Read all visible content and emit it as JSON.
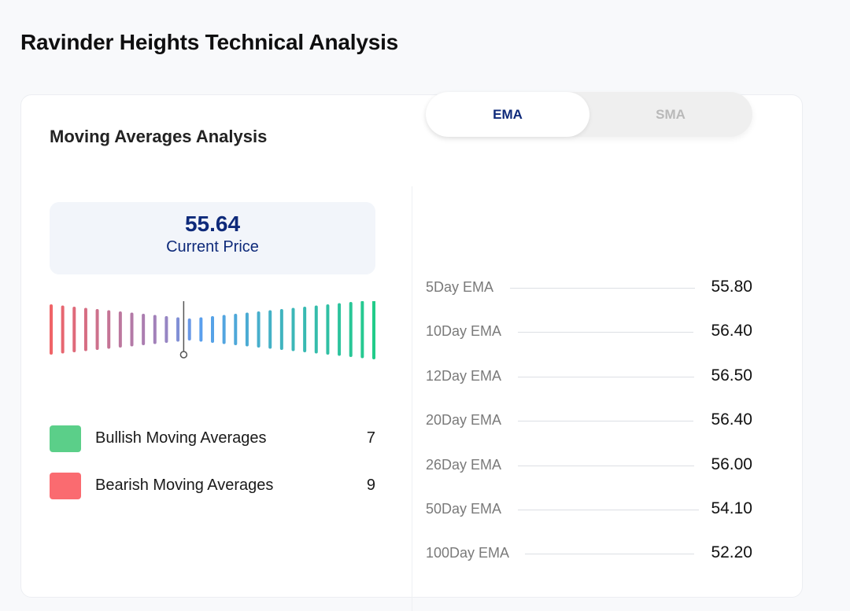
{
  "page": {
    "title": "Ravinder Heights Technical Analysis"
  },
  "card": {
    "title": "Moving Averages Analysis",
    "current_price": {
      "value": "55.64",
      "label": "Current Price"
    },
    "gauge": {
      "bar_count": 29,
      "marker_index": 12,
      "colors": {
        "bearish": "#f06468",
        "neutral": "#9b83c0",
        "mid": "#5b9ef0",
        "bullish": "#22cc8a"
      }
    },
    "legend": [
      {
        "label": "Bullish Moving Averages",
        "count": "7",
        "color": "#5bcf89"
      },
      {
        "label": "Bearish Moving Averages",
        "count": "9",
        "color": "#fa6b70"
      }
    ],
    "toggle": {
      "options": [
        "EMA",
        "SMA"
      ],
      "selected": "EMA"
    },
    "ema_rows": [
      {
        "label": "5Day EMA",
        "value": "55.80"
      },
      {
        "label": "10Day EMA",
        "value": "56.40"
      },
      {
        "label": "12Day EMA",
        "value": "56.50"
      },
      {
        "label": "20Day EMA",
        "value": "56.40"
      },
      {
        "label": "26Day EMA",
        "value": "56.00"
      },
      {
        "label": "50Day EMA",
        "value": "54.10"
      },
      {
        "label": "100Day EMA",
        "value": "52.20"
      }
    ]
  }
}
